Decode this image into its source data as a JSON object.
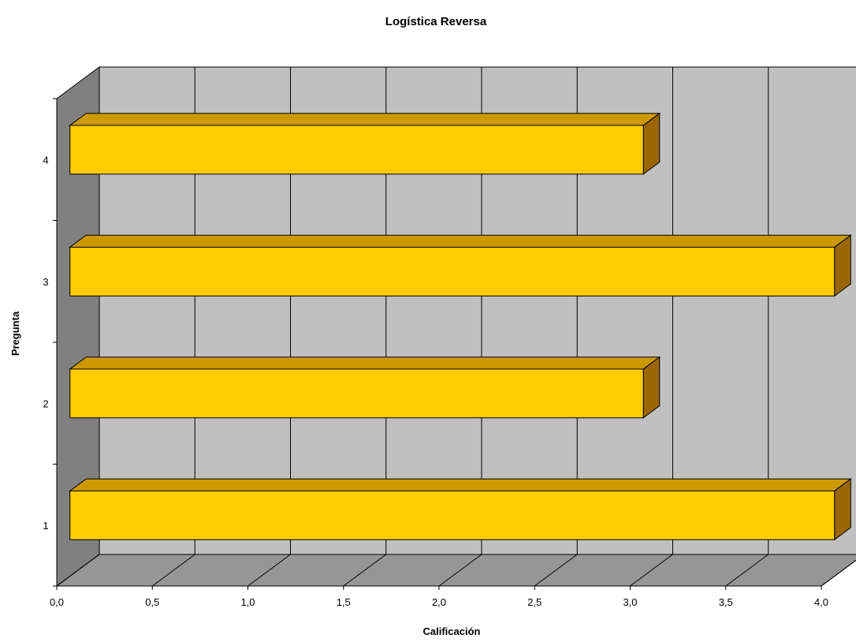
{
  "chart_data": {
    "type": "bar",
    "orientation": "horizontal",
    "style": "3d",
    "title": "Logística Reversa",
    "xlabel": "Calificación",
    "ylabel": "Pregunta",
    "categories": [
      "1",
      "2",
      "3",
      "4"
    ],
    "values": [
      4.0,
      3.0,
      4.0,
      3.0
    ],
    "xlim": [
      0,
      4.0
    ],
    "xticks": [
      "0,0",
      "0,5",
      "1,0",
      "1,5",
      "2,0",
      "2,5",
      "3,0",
      "3,5",
      "4,0"
    ],
    "grid": true,
    "legend": "none",
    "colors": {
      "bar_front": "#FFCC00",
      "bar_top": "#CC9900",
      "bar_side": "#996600",
      "back_wall": "#C0C0C0",
      "side_wall": "#808080",
      "floor": "#969696"
    }
  }
}
